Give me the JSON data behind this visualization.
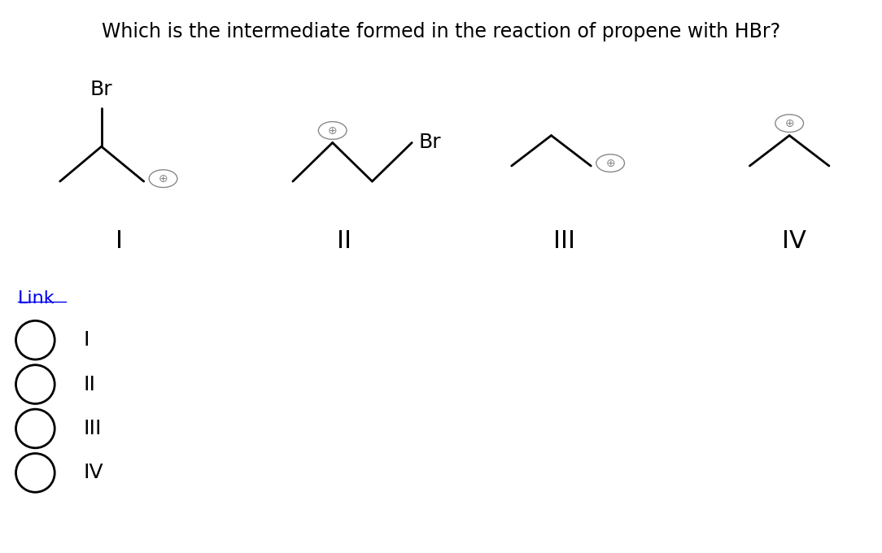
{
  "title": "Which is the intermediate formed in the reaction of propene with HBr?",
  "title_fontsize": 17,
  "title_color": "#000000",
  "background_color": "#ffffff",
  "link_text": "Link",
  "link_color": "#0000EE",
  "link_fontsize": 16,
  "options": [
    "I",
    "II",
    "III",
    "IV"
  ],
  "option_fontsize": 18,
  "roman_labels": [
    "I",
    "II",
    "III",
    "IV"
  ],
  "roman_fontsize": 22,
  "br_label": "Br",
  "br_fontsize": 18,
  "plus_symbol": "⊕",
  "plus_fontsize": 10,
  "line_color": "#000000",
  "line_width": 2.0
}
